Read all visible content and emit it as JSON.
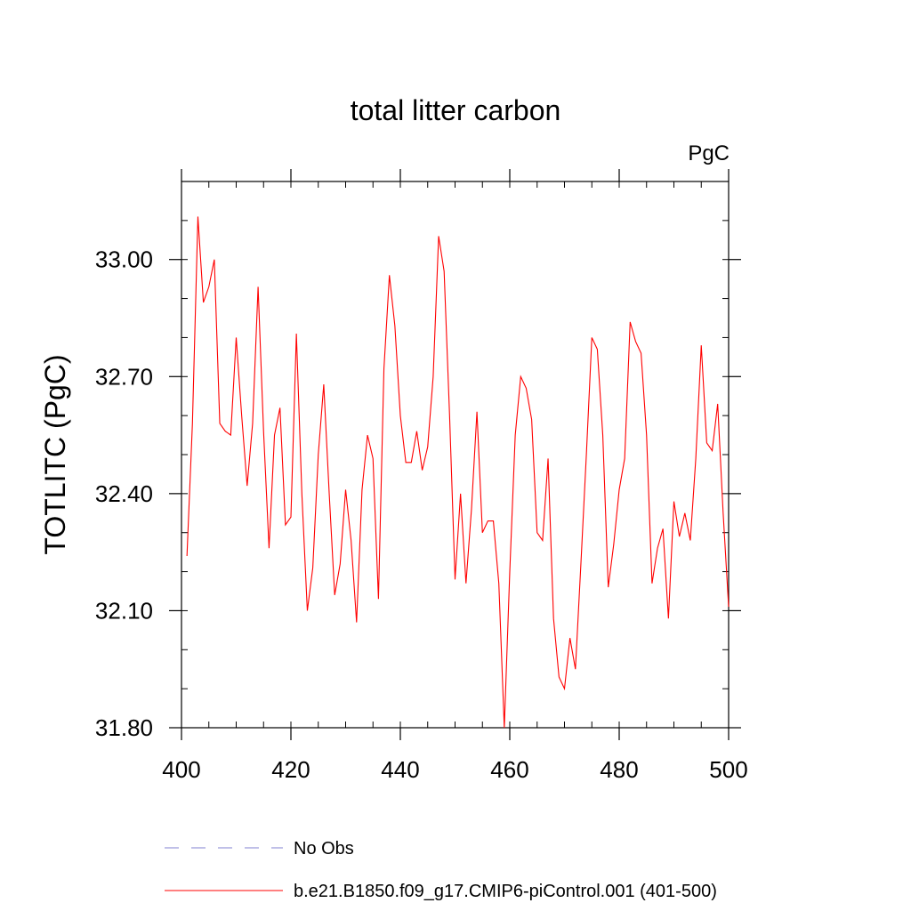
{
  "chart_data": {
    "type": "line",
    "title": "total litter carbon",
    "units_label": "PgC",
    "ylabel": "TOTLITC  (PgC)",
    "xlabel": "",
    "xlim": [
      400,
      500
    ],
    "ylim": [
      31.8,
      33.2
    ],
    "x_ticks": [
      400,
      420,
      440,
      460,
      480,
      500
    ],
    "x_tick_labels": [
      "400",
      "420",
      "440",
      "460",
      "480",
      "500"
    ],
    "x_minor_step": 5,
    "y_ticks": [
      31.8,
      32.1,
      32.4,
      32.7,
      33.0
    ],
    "y_tick_labels": [
      "31.80",
      "32.10",
      "32.40",
      "32.70",
      "33.00"
    ],
    "y_minor_step": 0.1,
    "grid": false,
    "legend_position": "bottom",
    "legend": [
      {
        "label": "No Obs",
        "color": "#8080d0",
        "style": "dashed"
      },
      {
        "label": "b.e21.B1850.f09_g17.CMIP6-piControl.001 (401-500)",
        "color": "#ff0000",
        "style": "solid"
      }
    ],
    "series": [
      {
        "name": "b.e21.B1850.f09_g17.CMIP6-piControl.001 (401-500)",
        "color": "#ff0000",
        "x": [
          401,
          402,
          403,
          404,
          405,
          406,
          407,
          408,
          409,
          410,
          411,
          412,
          413,
          414,
          415,
          416,
          417,
          418,
          419,
          420,
          421,
          422,
          423,
          424,
          425,
          426,
          427,
          428,
          429,
          430,
          431,
          432,
          433,
          434,
          435,
          436,
          437,
          438,
          439,
          440,
          441,
          442,
          443,
          444,
          445,
          446,
          447,
          448,
          449,
          450,
          451,
          452,
          453,
          454,
          455,
          456,
          457,
          458,
          459,
          460,
          461,
          462,
          463,
          464,
          465,
          466,
          467,
          468,
          469,
          470,
          471,
          472,
          473,
          474,
          475,
          476,
          477,
          478,
          479,
          480,
          481,
          482,
          483,
          484,
          485,
          486,
          487,
          488,
          489,
          490,
          491,
          492,
          493,
          494,
          495,
          496,
          497,
          498,
          499,
          500
        ],
        "values": [
          32.24,
          32.58,
          33.11,
          32.89,
          32.93,
          33.0,
          32.58,
          32.56,
          32.55,
          32.8,
          32.6,
          32.42,
          32.58,
          32.93,
          32.56,
          32.26,
          32.55,
          32.62,
          32.32,
          32.34,
          32.81,
          32.4,
          32.1,
          32.21,
          32.5,
          32.68,
          32.4,
          32.14,
          32.22,
          32.41,
          32.28,
          32.07,
          32.41,
          32.55,
          32.49,
          32.13,
          32.72,
          32.96,
          32.83,
          32.6,
          32.48,
          32.48,
          32.56,
          32.46,
          32.52,
          32.7,
          33.06,
          32.97,
          32.6,
          32.18,
          32.4,
          32.17,
          32.36,
          32.61,
          32.3,
          32.33,
          32.33,
          32.17,
          31.8,
          32.2,
          32.55,
          32.7,
          32.67,
          32.59,
          32.3,
          32.28,
          32.49,
          32.08,
          31.93,
          31.9,
          32.03,
          31.95,
          32.22,
          32.5,
          32.8,
          32.77,
          32.55,
          32.16,
          32.27,
          32.41,
          32.49,
          32.84,
          32.79,
          32.76,
          32.55,
          32.17,
          32.26,
          32.31,
          32.08,
          32.38,
          32.29,
          32.35,
          32.28,
          32.49,
          32.78,
          32.53,
          32.51,
          32.63,
          32.35,
          32.11
        ]
      }
    ]
  }
}
